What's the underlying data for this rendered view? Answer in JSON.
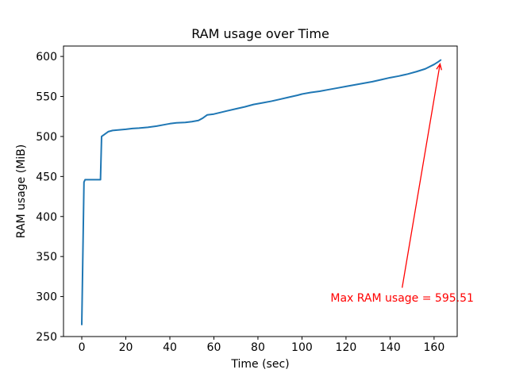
{
  "chart_data": {
    "type": "line",
    "title": "RAM usage over Time",
    "xlabel": "Time (sec)",
    "ylabel": "RAM usage (MiB)",
    "xlim": [
      -8.3,
      170.5
    ],
    "ylim": [
      250,
      613
    ],
    "xticks": [
      0,
      20,
      40,
      60,
      80,
      100,
      120,
      140,
      160
    ],
    "yticks": [
      250,
      300,
      350,
      400,
      450,
      500,
      550,
      600
    ],
    "grid": false,
    "axis_color": "#000000",
    "max_value": 595.51,
    "series": [
      {
        "name": "ram-usage",
        "color": "#1f77b4",
        "x": [
          0,
          1,
          1.5,
          8.5,
          9,
          9.5,
          10.5,
          12,
          14,
          16,
          18,
          20,
          23,
          26,
          30,
          34,
          38,
          40,
          43,
          47,
          50,
          53,
          55,
          57,
          60,
          63,
          66,
          70,
          74,
          78,
          82,
          86,
          90,
          94,
          98,
          100,
          104,
          108,
          112,
          116,
          120,
          124,
          128,
          132,
          136,
          140,
          144,
          148,
          152,
          156,
          160,
          162,
          163
        ],
        "y": [
          265,
          443,
          446,
          446,
          500,
          501,
          503,
          506,
          507.5,
          508,
          508.5,
          509,
          510,
          510.5,
          511.5,
          513,
          515,
          516,
          517,
          517.5,
          518.5,
          520,
          523,
          527,
          528,
          530,
          532,
          534.5,
          537,
          540,
          542,
          544,
          546.5,
          549,
          551.5,
          553,
          555,
          556.5,
          558.5,
          560.5,
          562.5,
          564.5,
          566.5,
          568.5,
          571,
          573.5,
          575.5,
          578,
          581,
          584.5,
          590,
          593.5,
          595.51
        ]
      }
    ],
    "annotation": {
      "text": "Max RAM usage = 595.51",
      "color": "#ff0000",
      "arrow_tip_xy": [
        163,
        595.51
      ],
      "arrow_base_xy": [
        145.5,
        311
      ],
      "text_center_xy": [
        145.5,
        298
      ]
    }
  }
}
